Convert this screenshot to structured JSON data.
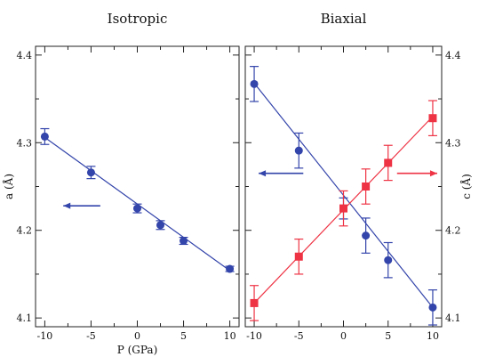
{
  "chart_data": [
    {
      "type": "line",
      "title": "Isotropic",
      "xlabel": "P (GPa)",
      "ylabel": "a (Å)",
      "xlim": [
        -11,
        11
      ],
      "ylim": [
        4.09,
        4.41
      ],
      "xticks": [
        "-10",
        "-5",
        "0",
        "5",
        "10"
      ],
      "yticks": [
        "4.1",
        "4.2",
        "4.3",
        "4.4"
      ],
      "grid": false,
      "series": [
        {
          "color": "#3344aa",
          "marker": "circle",
          "x": [
            -10,
            -5,
            0,
            2.5,
            5,
            10
          ],
          "y": [
            4.307,
            4.266,
            4.225,
            4.206,
            4.188,
            4.156
          ],
          "err": [
            0.009,
            0.007,
            0.005,
            0.005,
            0.004,
            0.003
          ],
          "fit": [
            [
              -10,
              4.306
            ],
            [
              10,
              4.154
            ]
          ]
        }
      ],
      "annotations": [
        {
          "type": "arrow",
          "direction": "left",
          "color": "#3344aa",
          "x_from": -4.0,
          "x_to": -8.0,
          "y": 4.228
        }
      ]
    },
    {
      "type": "line",
      "title": "Biaxial",
      "xlabel": "",
      "ylabel": "c (Å)",
      "xlim": [
        -11,
        11
      ],
      "ylim": [
        4.09,
        4.41
      ],
      "xticks": [
        "-10",
        "-5",
        "0",
        "5",
        "10"
      ],
      "yticks": [
        "4.1",
        "4.2",
        "4.3",
        "4.4"
      ],
      "grid": false,
      "series": [
        {
          "color": "#3344aa",
          "marker": "circle",
          "x": [
            -10,
            -5,
            0,
            2.5,
            5,
            10
          ],
          "y": [
            4.367,
            4.291,
            4.225,
            4.194,
            4.166,
            4.112
          ],
          "err": [
            0.02,
            0.02,
            0.012,
            0.02,
            0.02,
            0.02
          ],
          "fit": [
            [
              -10,
              4.368
            ],
            [
              10,
              4.112
            ]
          ]
        },
        {
          "color": "#ee3344",
          "marker": "square",
          "x": [
            -10,
            -5,
            0,
            2.5,
            5,
            10
          ],
          "y": [
            4.117,
            4.17,
            4.225,
            4.25,
            4.277,
            4.328
          ],
          "err": [
            0.02,
            0.02,
            0.02,
            0.02,
            0.02,
            0.02
          ],
          "fit": [
            [
              -10,
              4.117
            ],
            [
              10,
              4.33
            ]
          ]
        }
      ],
      "annotations": [
        {
          "type": "arrow",
          "direction": "left",
          "color": "#3344aa",
          "x_from": -4.5,
          "x_to": -9.5,
          "y": 4.265
        },
        {
          "type": "arrow",
          "direction": "right",
          "color": "#ee3344",
          "x_from": 6.0,
          "x_to": 10.5,
          "y": 4.265
        }
      ]
    }
  ]
}
